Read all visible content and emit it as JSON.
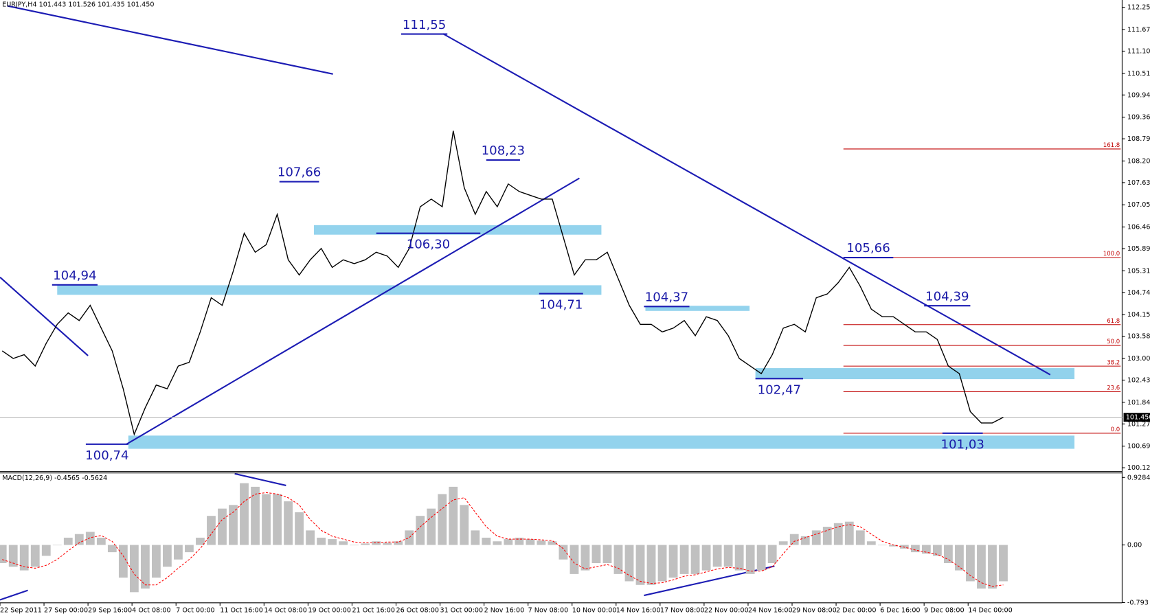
{
  "chart_data": [
    {
      "type": "line",
      "title": "EURJPY,H4  101.443 101.526 101.435 101.450",
      "categories": [
        "22 Sep 2011",
        null,
        null,
        null,
        "27 Sep 00:00",
        null,
        null,
        null,
        "29 Sep 16:00",
        null,
        null,
        null,
        "4 Oct 08:00",
        null,
        null,
        null,
        "7 Oct 00:00",
        null,
        null,
        null,
        "11 Oct 16:00",
        null,
        null,
        null,
        "14 Oct 08:00",
        null,
        null,
        null,
        "19 Oct 00:00",
        null,
        null,
        null,
        "21 Oct 16:00",
        null,
        null,
        null,
        "26 Oct 08:00",
        null,
        null,
        null,
        "31 Oct 00:00",
        null,
        null,
        null,
        "2 Nov 16:00",
        null,
        null,
        null,
        "7 Nov 08:00",
        null,
        null,
        null,
        "10 Nov 00:00",
        null,
        null,
        null,
        "14 Nov 16:00",
        null,
        null,
        null,
        "17 Nov 08:00",
        null,
        null,
        null,
        "22 Nov 00:00",
        null,
        null,
        null,
        "24 Nov 16:00",
        null,
        null,
        null,
        "29 Nov 08:00",
        null,
        null,
        null,
        "2 Dec 00:00",
        null,
        null,
        null,
        "6 Dec 16:00",
        null,
        null,
        null,
        "9 Dec 08:00",
        null,
        null,
        null,
        "14 Dec 00:00",
        null,
        null,
        null
      ],
      "series": [
        {
          "color": "#000000",
          "values": [
            103.2,
            103.0,
            103.1,
            102.8,
            103.4,
            103.9,
            104.2,
            104.0,
            104.4,
            103.8,
            103.2,
            102.2,
            101.0,
            101.7,
            102.3,
            102.2,
            102.8,
            102.9,
            103.7,
            104.6,
            104.4,
            105.3,
            106.3,
            105.8,
            106.0,
            106.8,
            105.6,
            105.2,
            105.6,
            105.9,
            105.4,
            105.6,
            105.5,
            105.6,
            105.8,
            105.7,
            105.4,
            105.9,
            107.0,
            107.2,
            107.0,
            109.0,
            107.5,
            106.8,
            107.4,
            107.0,
            107.6,
            107.4,
            107.3,
            107.2,
            107.2,
            106.2,
            105.2,
            105.6,
            105.6,
            105.8,
            105.1,
            104.4,
            103.9,
            103.9,
            103.7,
            103.8,
            104.0,
            103.6,
            104.1,
            104.0,
            103.6,
            103.0,
            102.8,
            102.6,
            103.1,
            103.8,
            103.9,
            103.7,
            104.6,
            104.7,
            105.0,
            105.4,
            104.9,
            104.3,
            104.1,
            104.1,
            103.9,
            103.7,
            103.7,
            103.5,
            102.8,
            102.6,
            101.6,
            101.3,
            101.3,
            101.45
          ]
        }
      ],
      "ylim": [
        100.02,
        112.39
      ],
      "yticks": [
        112.255,
        111.67,
        {
          "value": 111.1,
          "label": "111.100"
        },
        110.515,
        109.945,
        {
          "value": 109.36,
          "label": "109.360"
        },
        {
          "value": 108.79,
          "label": "108.790"
        },
        108.205,
        107.635,
        {
          "value": 107.05,
          "label": "107.050"
        },
        106.465,
        105.895,
        {
          "value": 105.31,
          "label": "105.310"
        },
        {
          "value": 104.74,
          "label": "104.740"
        },
        104.155,
        103.585,
        {
          "value": 103,
          "label": "103.000"
        },
        {
          "value": 102.43,
          "label": "102.430"
        },
        101.845,
        101.275,
        {
          "value": 100.69,
          "label": "100.690"
        },
        {
          "value": 100.12,
          "label": "100.120"
        }
      ],
      "current_price": {
        "value": 101.45,
        "label": "101.450"
      },
      "annotations": [
        {
          "value": 111.55,
          "label": "111,55"
        },
        {
          "value": 108.23,
          "label": "108,23"
        },
        {
          "value": 107.66,
          "label": "107,66"
        },
        {
          "value": 106.3,
          "label": "106,30"
        },
        {
          "value": 105.66,
          "label": "105,66"
        },
        {
          "value": 104.94,
          "label": "104,94"
        },
        {
          "value": 104.71,
          "label": "104,71"
        },
        {
          "value": 104.39,
          "label": "104,39"
        },
        {
          "value": 104.37,
          "label": "104,37"
        },
        {
          "value": 102.47,
          "label": "102,47"
        },
        {
          "value": 101.03,
          "label": "101,03"
        },
        {
          "value": 100.74,
          "label": "100,74"
        }
      ],
      "fibonacci": {
        "low": 101.03,
        "high": 105.66,
        "color": "#c00000",
        "levels": [
          161.8,
          {
            "value": 100,
            "label": "100.0"
          },
          61.8,
          {
            "value": 50,
            "label": "50.0"
          },
          38.2,
          23.6,
          {
            "value": 0,
            "label": "0.0"
          }
        ]
      }
    },
    {
      "type": "bar",
      "title": "MACD(12,26,9) -0.4565 -0.5624",
      "series": [
        {
          "color": "#c0c0c0",
          "values": [
            -0.25,
            -0.3,
            -0.35,
            -0.3,
            -0.15,
            0.0,
            0.1,
            0.15,
            0.18,
            0.1,
            -0.1,
            -0.45,
            -0.65,
            -0.6,
            -0.45,
            -0.3,
            -0.2,
            -0.1,
            0.1,
            0.4,
            0.5,
            0.55,
            0.85,
            0.8,
            0.7,
            0.7,
            0.6,
            0.45,
            0.2,
            0.1,
            0.08,
            0.05,
            0.0,
            0.02,
            0.05,
            0.03,
            0.05,
            0.2,
            0.4,
            0.5,
            0.7,
            0.8,
            0.55,
            0.2,
            0.1,
            0.05,
            0.08,
            0.1,
            0.08,
            0.06,
            0.05,
            -0.2,
            -0.4,
            -0.35,
            -0.25,
            -0.25,
            -0.4,
            -0.5,
            -0.55,
            -0.55,
            -0.5,
            -0.45,
            -0.4,
            -0.4,
            -0.35,
            -0.3,
            -0.3,
            -0.35,
            -0.4,
            -0.35,
            -0.25,
            0.05,
            0.15,
            0.12,
            0.2,
            0.25,
            0.3,
            0.32,
            0.2,
            0.05,
            0.0,
            -0.02,
            -0.05,
            -0.1,
            -0.12,
            -0.15,
            -0.25,
            -0.35,
            -0.5,
            -0.6,
            -0.6,
            -0.5
          ]
        },
        {
          "color": "#ff0000",
          "values": [
            -0.2,
            -0.25,
            -0.3,
            -0.32,
            -0.28,
            -0.2,
            -0.08,
            0.03,
            0.1,
            0.13,
            0.05,
            -0.15,
            -0.4,
            -0.55,
            -0.55,
            -0.45,
            -0.32,
            -0.2,
            -0.05,
            0.15,
            0.35,
            0.45,
            0.6,
            0.7,
            0.72,
            0.7,
            0.65,
            0.55,
            0.35,
            0.2,
            0.12,
            0.08,
            0.04,
            0.03,
            0.03,
            0.04,
            0.04,
            0.1,
            0.25,
            0.38,
            0.5,
            0.62,
            0.65,
            0.45,
            0.25,
            0.12,
            0.08,
            0.08,
            0.08,
            0.07,
            0.06,
            -0.05,
            -0.25,
            -0.33,
            -0.3,
            -0.27,
            -0.32,
            -0.42,
            -0.5,
            -0.53,
            -0.52,
            -0.48,
            -0.43,
            -0.41,
            -0.37,
            -0.33,
            -0.31,
            -0.32,
            -0.36,
            -0.36,
            -0.3,
            -0.12,
            0.05,
            0.1,
            0.15,
            0.2,
            0.25,
            0.28,
            0.25,
            0.15,
            0.05,
            0.0,
            -0.03,
            -0.07,
            -0.1,
            -0.13,
            -0.2,
            -0.3,
            -0.42,
            -0.52,
            -0.57,
            -0.55
          ]
        }
      ],
      "ylim": [
        -0.796,
        0.99
      ],
      "yticks": [
        0.9284,
        {
          "value": 0,
          "label": "0.00"
        },
        -0.793
      ]
    }
  ]
}
